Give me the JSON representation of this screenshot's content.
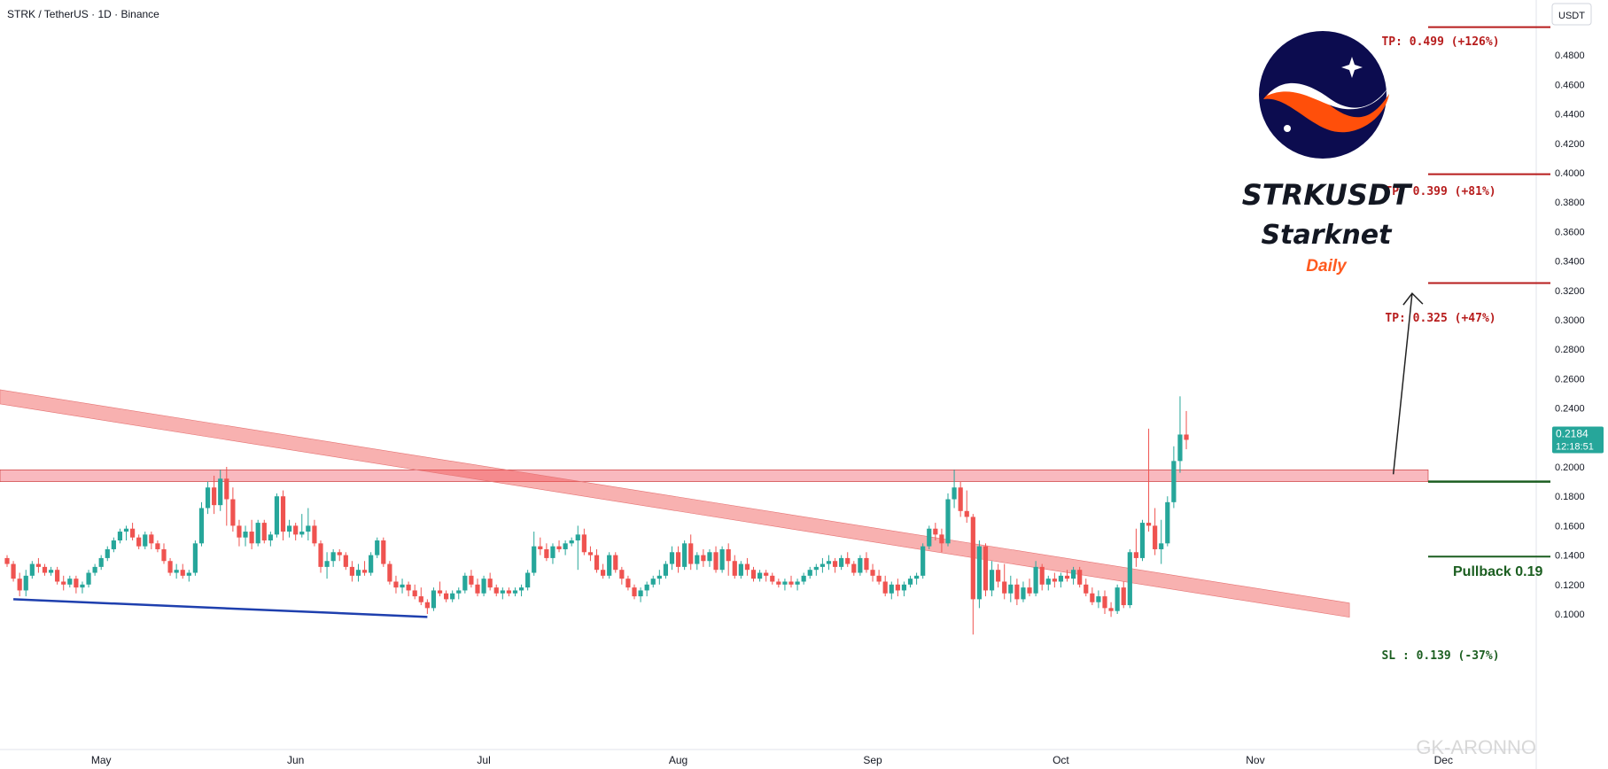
{
  "header": {
    "symbol_line": "STRK / TetherUS · 1D · Binance"
  },
  "currency_badge": "USDT",
  "branding": {
    "ticker": "STRKUSDT",
    "name": "Starknet",
    "timeframe": "Daily",
    "logo": "starknet-logo",
    "timeframe_color": "#ff5a1f"
  },
  "watermark": "GK-ARONNO",
  "price_scale": {
    "ticks": [
      "0.1000",
      "0.1200",
      "0.1400",
      "0.1600",
      "0.1800",
      "0.2000",
      "0.2200",
      "0.2400",
      "0.2600",
      "0.2800",
      "0.3000",
      "0.3200",
      "0.3400",
      "0.3600",
      "0.3800",
      "0.4000",
      "0.4200",
      "0.4400",
      "0.4600",
      "0.4800",
      "0.5000"
    ]
  },
  "last_price": {
    "price": "0.2184",
    "countdown": "12:18:51",
    "color": "#26a69a"
  },
  "time_axis": {
    "labels": [
      "May",
      "Jun",
      "Jul",
      "Aug",
      "Sep",
      "Oct",
      "Nov",
      "Dec"
    ]
  },
  "annotations": {
    "tp3": "TP: 0.499 (+126%)",
    "tp2": "TP: 0.399 (+81%)",
    "tp1": "TP: 0.325 (+47%)",
    "pullback": "Pullback 0.19",
    "sl": "SL : 0.139 (-37%)"
  },
  "colors": {
    "up": "#26a69a",
    "down": "#ef5350",
    "tp_line": "#b71c1c",
    "sl_line": "#1b5e20",
    "zone": "#f7a1aa",
    "support_line": "#1e3fae"
  },
  "chart_data": {
    "type": "candlestick",
    "title": "STRK / TetherUS · 1D · Binance",
    "ylabel": "USDT",
    "ylim": [
      0.09,
      0.505
    ],
    "x_range": [
      "2024-04-16",
      "2024-12-03"
    ],
    "levels": {
      "tp3": 0.499,
      "tp2": 0.399,
      "tp1": 0.325,
      "pullback": 0.19,
      "sl": 0.139,
      "last": 0.2184,
      "resistance_zone": [
        0.19,
        0.198
      ]
    },
    "trendlines": [
      {
        "name": "descending-resistance-band",
        "from": [
          "2024-04-16",
          0.244
        ],
        "to": [
          "2024-11-16",
          0.099
        ]
      },
      {
        "name": "support-line",
        "from": [
          "2024-04-17",
          0.11
        ],
        "to": [
          "2024-06-22",
          0.098
        ]
      },
      {
        "name": "projection-arrow",
        "from": [
          "2024-11-23",
          0.195
        ],
        "to": [
          "2024-11-26",
          0.318
        ]
      }
    ],
    "candles_note": "Daily candles, each [open, high, low, close]",
    "start_date": "2024-04-16",
    "ohlc": [
      [
        0.138,
        0.14,
        0.132,
        0.134
      ],
      [
        0.134,
        0.136,
        0.122,
        0.124
      ],
      [
        0.124,
        0.128,
        0.112,
        0.116
      ],
      [
        0.116,
        0.13,
        0.112,
        0.126
      ],
      [
        0.126,
        0.136,
        0.124,
        0.134
      ],
      [
        0.134,
        0.138,
        0.128,
        0.132
      ],
      [
        0.132,
        0.134,
        0.126,
        0.128
      ],
      [
        0.128,
        0.132,
        0.126,
        0.13
      ],
      [
        0.13,
        0.132,
        0.12,
        0.122
      ],
      [
        0.122,
        0.126,
        0.116,
        0.12
      ],
      [
        0.12,
        0.126,
        0.118,
        0.124
      ],
      [
        0.124,
        0.126,
        0.114,
        0.118
      ],
      [
        0.118,
        0.122,
        0.114,
        0.12
      ],
      [
        0.12,
        0.13,
        0.118,
        0.128
      ],
      [
        0.128,
        0.134,
        0.126,
        0.132
      ],
      [
        0.132,
        0.14,
        0.13,
        0.138
      ],
      [
        0.138,
        0.146,
        0.136,
        0.144
      ],
      [
        0.144,
        0.152,
        0.142,
        0.15
      ],
      [
        0.15,
        0.158,
        0.148,
        0.156
      ],
      [
        0.156,
        0.16,
        0.15,
        0.158
      ],
      [
        0.158,
        0.162,
        0.15,
        0.152
      ],
      [
        0.152,
        0.154,
        0.144,
        0.146
      ],
      [
        0.146,
        0.156,
        0.144,
        0.154
      ],
      [
        0.154,
        0.156,
        0.144,
        0.148
      ],
      [
        0.148,
        0.15,
        0.142,
        0.144
      ],
      [
        0.144,
        0.148,
        0.134,
        0.136
      ],
      [
        0.136,
        0.138,
        0.126,
        0.128
      ],
      [
        0.128,
        0.134,
        0.124,
        0.13
      ],
      [
        0.13,
        0.134,
        0.124,
        0.126
      ],
      [
        0.126,
        0.13,
        0.122,
        0.128
      ],
      [
        0.128,
        0.15,
        0.126,
        0.148
      ],
      [
        0.148,
        0.176,
        0.146,
        0.172
      ],
      [
        0.172,
        0.19,
        0.168,
        0.186
      ],
      [
        0.186,
        0.194,
        0.168,
        0.174
      ],
      [
        0.174,
        0.198,
        0.17,
        0.192
      ],
      [
        0.192,
        0.2,
        0.16,
        0.178
      ],
      [
        0.178,
        0.186,
        0.156,
        0.16
      ],
      [
        0.16,
        0.164,
        0.146,
        0.152
      ],
      [
        0.152,
        0.16,
        0.146,
        0.156
      ],
      [
        0.156,
        0.164,
        0.144,
        0.148
      ],
      [
        0.148,
        0.164,
        0.146,
        0.162
      ],
      [
        0.162,
        0.164,
        0.148,
        0.15
      ],
      [
        0.15,
        0.156,
        0.146,
        0.154
      ],
      [
        0.154,
        0.182,
        0.152,
        0.18
      ],
      [
        0.18,
        0.184,
        0.15,
        0.156
      ],
      [
        0.156,
        0.164,
        0.152,
        0.16
      ],
      [
        0.16,
        0.162,
        0.15,
        0.154
      ],
      [
        0.154,
        0.168,
        0.152,
        0.156
      ],
      [
        0.156,
        0.172,
        0.15,
        0.16
      ],
      [
        0.16,
        0.164,
        0.146,
        0.148
      ],
      [
        0.148,
        0.15,
        0.128,
        0.132
      ],
      [
        0.132,
        0.142,
        0.124,
        0.136
      ],
      [
        0.136,
        0.144,
        0.132,
        0.142
      ],
      [
        0.142,
        0.144,
        0.136,
        0.14
      ],
      [
        0.14,
        0.142,
        0.13,
        0.132
      ],
      [
        0.132,
        0.136,
        0.122,
        0.126
      ],
      [
        0.126,
        0.134,
        0.122,
        0.13
      ],
      [
        0.13,
        0.136,
        0.126,
        0.128
      ],
      [
        0.128,
        0.142,
        0.126,
        0.14
      ],
      [
        0.14,
        0.152,
        0.138,
        0.15
      ],
      [
        0.15,
        0.152,
        0.132,
        0.134
      ],
      [
        0.134,
        0.136,
        0.12,
        0.122
      ],
      [
        0.122,
        0.126,
        0.114,
        0.118
      ],
      [
        0.118,
        0.124,
        0.114,
        0.12
      ],
      [
        0.12,
        0.122,
        0.112,
        0.116
      ],
      [
        0.116,
        0.12,
        0.11,
        0.112
      ],
      [
        0.112,
        0.118,
        0.106,
        0.108
      ],
      [
        0.108,
        0.11,
        0.1,
        0.104
      ],
      [
        0.104,
        0.118,
        0.102,
        0.116
      ],
      [
        0.116,
        0.122,
        0.112,
        0.114
      ],
      [
        0.114,
        0.116,
        0.108,
        0.11
      ],
      [
        0.11,
        0.116,
        0.108,
        0.114
      ],
      [
        0.114,
        0.118,
        0.11,
        0.116
      ],
      [
        0.116,
        0.128,
        0.114,
        0.126
      ],
      [
        0.126,
        0.13,
        0.118,
        0.12
      ],
      [
        0.12,
        0.124,
        0.112,
        0.114
      ],
      [
        0.114,
        0.126,
        0.112,
        0.124
      ],
      [
        0.124,
        0.128,
        0.116,
        0.118
      ],
      [
        0.118,
        0.12,
        0.112,
        0.114
      ],
      [
        0.114,
        0.118,
        0.11,
        0.116
      ],
      [
        0.116,
        0.118,
        0.112,
        0.114
      ],
      [
        0.114,
        0.118,
        0.112,
        0.116
      ],
      [
        0.116,
        0.12,
        0.112,
        0.118
      ],
      [
        0.118,
        0.13,
        0.116,
        0.128
      ],
      [
        0.128,
        0.156,
        0.126,
        0.146
      ],
      [
        0.146,
        0.152,
        0.14,
        0.144
      ],
      [
        0.144,
        0.148,
        0.136,
        0.138
      ],
      [
        0.138,
        0.148,
        0.134,
        0.146
      ],
      [
        0.146,
        0.15,
        0.142,
        0.144
      ],
      [
        0.144,
        0.15,
        0.14,
        0.148
      ],
      [
        0.148,
        0.152,
        0.146,
        0.15
      ],
      [
        0.15,
        0.16,
        0.13,
        0.154
      ],
      [
        0.154,
        0.158,
        0.14,
        0.142
      ],
      [
        0.142,
        0.146,
        0.136,
        0.14
      ],
      [
        0.14,
        0.144,
        0.128,
        0.13
      ],
      [
        0.13,
        0.134,
        0.124,
        0.126
      ],
      [
        0.126,
        0.142,
        0.124,
        0.14
      ],
      [
        0.14,
        0.142,
        0.128,
        0.13
      ],
      [
        0.13,
        0.132,
        0.12,
        0.124
      ],
      [
        0.124,
        0.126,
        0.116,
        0.118
      ],
      [
        0.118,
        0.12,
        0.11,
        0.112
      ],
      [
        0.112,
        0.118,
        0.108,
        0.116
      ],
      [
        0.116,
        0.122,
        0.112,
        0.12
      ],
      [
        0.12,
        0.126,
        0.118,
        0.124
      ],
      [
        0.124,
        0.13,
        0.12,
        0.126
      ],
      [
        0.126,
        0.136,
        0.124,
        0.134
      ],
      [
        0.134,
        0.146,
        0.13,
        0.142
      ],
      [
        0.142,
        0.146,
        0.128,
        0.132
      ],
      [
        0.132,
        0.15,
        0.13,
        0.148
      ],
      [
        0.148,
        0.154,
        0.13,
        0.134
      ],
      [
        0.134,
        0.142,
        0.13,
        0.14
      ],
      [
        0.14,
        0.144,
        0.132,
        0.136
      ],
      [
        0.136,
        0.144,
        0.132,
        0.142
      ],
      [
        0.142,
        0.146,
        0.128,
        0.13
      ],
      [
        0.13,
        0.146,
        0.128,
        0.144
      ],
      [
        0.144,
        0.148,
        0.126,
        0.136
      ],
      [
        0.136,
        0.14,
        0.124,
        0.126
      ],
      [
        0.126,
        0.136,
        0.124,
        0.134
      ],
      [
        0.134,
        0.138,
        0.126,
        0.13
      ],
      [
        0.13,
        0.132,
        0.122,
        0.124
      ],
      [
        0.124,
        0.13,
        0.122,
        0.128
      ],
      [
        0.128,
        0.13,
        0.122,
        0.126
      ],
      [
        0.126,
        0.128,
        0.12,
        0.122
      ],
      [
        0.122,
        0.124,
        0.118,
        0.12
      ],
      [
        0.12,
        0.124,
        0.116,
        0.122
      ],
      [
        0.122,
        0.126,
        0.118,
        0.12
      ],
      [
        0.12,
        0.124,
        0.116,
        0.122
      ],
      [
        0.122,
        0.128,
        0.12,
        0.126
      ],
      [
        0.126,
        0.132,
        0.124,
        0.13
      ],
      [
        0.13,
        0.134,
        0.126,
        0.132
      ],
      [
        0.132,
        0.138,
        0.128,
        0.134
      ],
      [
        0.134,
        0.14,
        0.13,
        0.136
      ],
      [
        0.136,
        0.138,
        0.128,
        0.132
      ],
      [
        0.132,
        0.14,
        0.13,
        0.138
      ],
      [
        0.138,
        0.142,
        0.132,
        0.134
      ],
      [
        0.134,
        0.136,
        0.126,
        0.128
      ],
      [
        0.128,
        0.14,
        0.126,
        0.138
      ],
      [
        0.138,
        0.142,
        0.128,
        0.13
      ],
      [
        0.13,
        0.134,
        0.122,
        0.126
      ],
      [
        0.126,
        0.13,
        0.12,
        0.122
      ],
      [
        0.122,
        0.126,
        0.112,
        0.114
      ],
      [
        0.114,
        0.122,
        0.11,
        0.12
      ],
      [
        0.12,
        0.124,
        0.112,
        0.116
      ],
      [
        0.116,
        0.122,
        0.112,
        0.12
      ],
      [
        0.12,
        0.126,
        0.118,
        0.124
      ],
      [
        0.124,
        0.128,
        0.12,
        0.126
      ],
      [
        0.126,
        0.148,
        0.124,
        0.146
      ],
      [
        0.146,
        0.16,
        0.144,
        0.158
      ],
      [
        0.158,
        0.162,
        0.15,
        0.154
      ],
      [
        0.154,
        0.158,
        0.142,
        0.148
      ],
      [
        0.148,
        0.182,
        0.146,
        0.178
      ],
      [
        0.178,
        0.198,
        0.172,
        0.186
      ],
      [
        0.186,
        0.19,
        0.166,
        0.17
      ],
      [
        0.17,
        0.184,
        0.162,
        0.166
      ],
      [
        0.166,
        0.168,
        0.086,
        0.11
      ],
      [
        0.11,
        0.15,
        0.104,
        0.146
      ],
      [
        0.146,
        0.148,
        0.112,
        0.116
      ],
      [
        0.116,
        0.136,
        0.112,
        0.13
      ],
      [
        0.13,
        0.134,
        0.118,
        0.122
      ],
      [
        0.122,
        0.134,
        0.11,
        0.114
      ],
      [
        0.114,
        0.126,
        0.108,
        0.12
      ],
      [
        0.12,
        0.124,
        0.106,
        0.11
      ],
      [
        0.11,
        0.122,
        0.108,
        0.118
      ],
      [
        0.118,
        0.124,
        0.112,
        0.114
      ],
      [
        0.114,
        0.136,
        0.112,
        0.132
      ],
      [
        0.132,
        0.134,
        0.116,
        0.12
      ],
      [
        0.12,
        0.126,
        0.116,
        0.124
      ],
      [
        0.124,
        0.128,
        0.118,
        0.122
      ],
      [
        0.122,
        0.128,
        0.118,
        0.126
      ],
      [
        0.126,
        0.13,
        0.122,
        0.124
      ],
      [
        0.124,
        0.132,
        0.12,
        0.13
      ],
      [
        0.13,
        0.132,
        0.118,
        0.12
      ],
      [
        0.12,
        0.124,
        0.112,
        0.114
      ],
      [
        0.114,
        0.118,
        0.106,
        0.108
      ],
      [
        0.108,
        0.116,
        0.104,
        0.112
      ],
      [
        0.112,
        0.116,
        0.1,
        0.104
      ],
      [
        0.104,
        0.108,
        0.098,
        0.102
      ],
      [
        0.102,
        0.12,
        0.1,
        0.118
      ],
      [
        0.118,
        0.122,
        0.104,
        0.106
      ],
      [
        0.106,
        0.144,
        0.104,
        0.142
      ],
      [
        0.142,
        0.158,
        0.132,
        0.138
      ],
      [
        0.138,
        0.164,
        0.136,
        0.162
      ],
      [
        0.162,
        0.226,
        0.156,
        0.16
      ],
      [
        0.16,
        0.172,
        0.14,
        0.144
      ],
      [
        0.144,
        0.164,
        0.134,
        0.148
      ],
      [
        0.148,
        0.18,
        0.146,
        0.176
      ],
      [
        0.176,
        0.214,
        0.172,
        0.204
      ],
      [
        0.204,
        0.248,
        0.196,
        0.222
      ],
      [
        0.222,
        0.238,
        0.212,
        0.2184
      ]
    ]
  }
}
